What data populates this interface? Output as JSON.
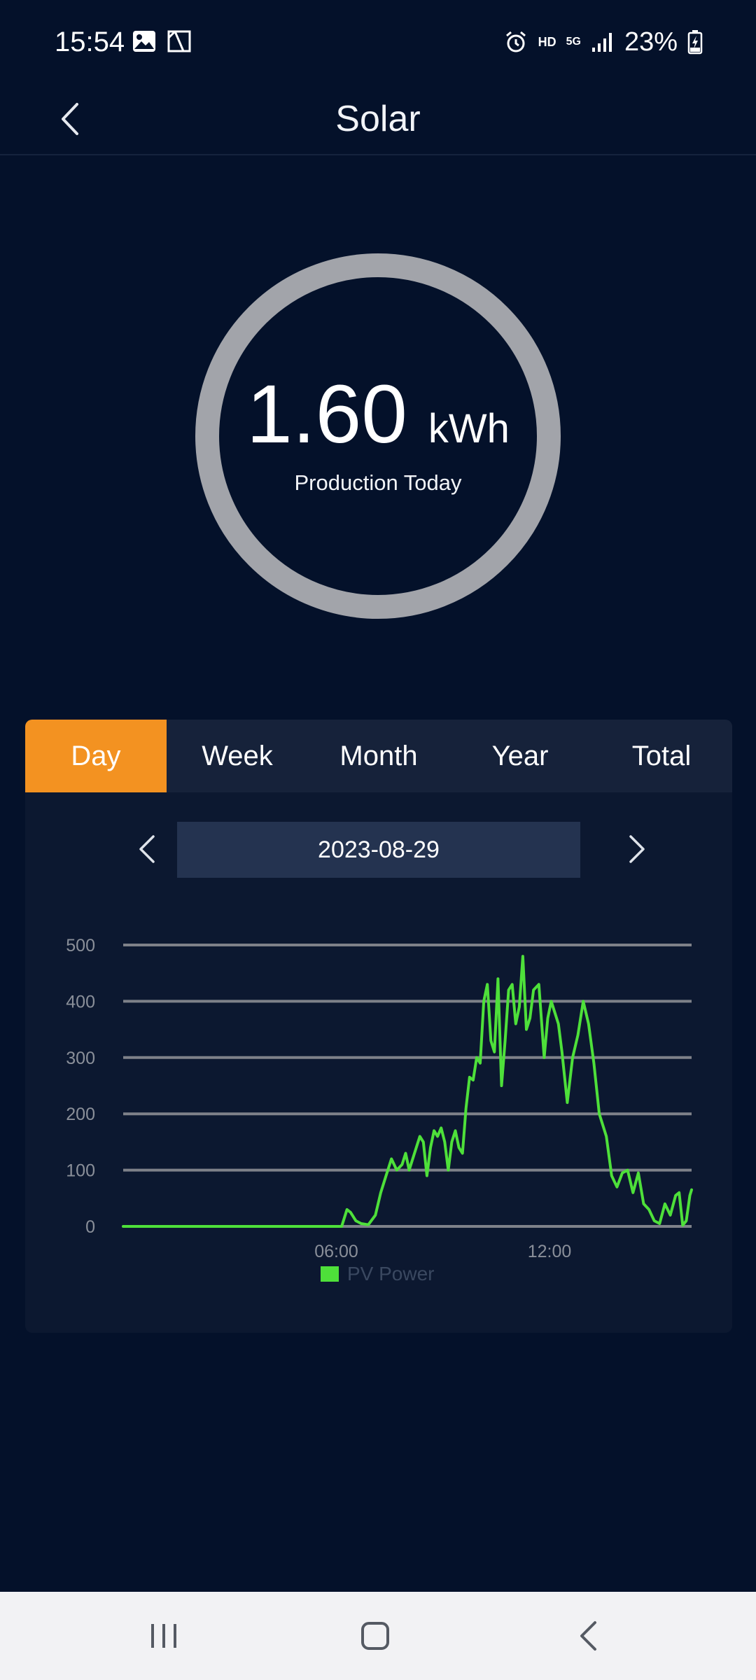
{
  "status_bar": {
    "time": "15:54",
    "hd_label": "HD",
    "network_label": "5G",
    "battery_percent": "23%",
    "icons": [
      "gallery-icon",
      "screenshot-icon",
      "alarm-icon",
      "signal-icon",
      "battery-charging-icon"
    ]
  },
  "header": {
    "title": "Solar",
    "back_icon": "chevron-left-icon"
  },
  "gauge": {
    "value": "1.60",
    "unit": "kWh",
    "label": "Production Today",
    "ring_color": "#a2a4aa"
  },
  "tabs": [
    {
      "label": "Day",
      "active": true
    },
    {
      "label": "Week",
      "active": false
    },
    {
      "label": "Month",
      "active": false
    },
    {
      "label": "Year",
      "active": false
    },
    {
      "label": "Total",
      "active": false
    }
  ],
  "date_picker": {
    "value": "2023-08-29",
    "prev_icon": "chevron-left-icon",
    "next_icon": "chevron-right-icon"
  },
  "colors": {
    "background": "#04112a",
    "card": "#0c1830",
    "accent": "#f39221",
    "series": "#4ee03a"
  },
  "chart_data": {
    "type": "line",
    "title": "",
    "xlabel": "",
    "ylabel": "",
    "xlim": [
      0,
      16
    ],
    "ylim": [
      0,
      500
    ],
    "yticks": [
      0,
      100,
      200,
      300,
      400,
      500
    ],
    "xticks": [
      {
        "value": 6,
        "label": "06:00"
      },
      {
        "value": 12,
        "label": "12:00"
      }
    ],
    "grid": true,
    "legend": "bottom",
    "series": [
      {
        "name": "PV Power",
        "x": [
          0,
          1,
          2,
          3,
          4,
          5,
          6.15,
          6.3,
          6.4,
          6.55,
          6.7,
          6.9,
          7.1,
          7.25,
          7.4,
          7.55,
          7.7,
          7.85,
          7.95,
          8.05,
          8.15,
          8.25,
          8.35,
          8.45,
          8.55,
          8.65,
          8.75,
          8.85,
          8.95,
          9.05,
          9.15,
          9.25,
          9.35,
          9.45,
          9.55,
          9.65,
          9.75,
          9.85,
          9.95,
          10.05,
          10.15,
          10.25,
          10.35,
          10.45,
          10.55,
          10.65,
          10.75,
          10.85,
          10.95,
          11.05,
          11.15,
          11.25,
          11.35,
          11.45,
          11.55,
          11.7,
          11.85,
          11.95,
          12.05,
          12.15,
          12.25,
          12.35,
          12.5,
          12.65,
          12.8,
          12.95,
          13.1,
          13.25,
          13.4,
          13.6,
          13.75,
          13.9,
          14.05,
          14.2,
          14.35,
          14.5,
          14.65,
          14.8,
          14.95,
          15.1,
          15.25,
          15.4,
          15.55,
          15.65,
          15.75,
          15.85,
          15.95,
          16.0
        ],
        "values": [
          0,
          0,
          0,
          0,
          0,
          0,
          0,
          30,
          25,
          10,
          5,
          3,
          20,
          60,
          90,
          120,
          100,
          110,
          130,
          100,
          120,
          140,
          160,
          150,
          90,
          140,
          170,
          160,
          175,
          150,
          100,
          150,
          170,
          140,
          130,
          210,
          265,
          260,
          300,
          290,
          400,
          430,
          330,
          310,
          440,
          250,
          330,
          420,
          430,
          360,
          390,
          480,
          350,
          370,
          420,
          430,
          300,
          370,
          400,
          380,
          360,
          310,
          220,
          300,
          340,
          400,
          360,
          290,
          200,
          160,
          90,
          70,
          95,
          100,
          60,
          95,
          40,
          30,
          10,
          5,
          40,
          20,
          55,
          60,
          2,
          10,
          55,
          65
        ]
      }
    ]
  },
  "nav_bar": {
    "icons": [
      "recent-apps-icon",
      "home-icon",
      "back-icon"
    ]
  }
}
